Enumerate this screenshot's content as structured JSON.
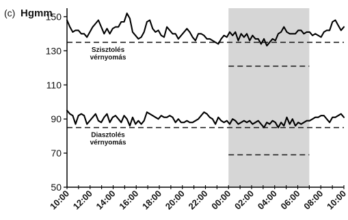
{
  "chart_data": {
    "type": "line",
    "panel_label": "(c)",
    "ylabel": "Hgmm",
    "ylim": [
      50,
      155
    ],
    "yticks": [
      "50",
      "70",
      "90",
      "110",
      "130",
      "150"
    ],
    "xticks": [
      "10:00",
      "12:00",
      "14:00",
      "16:00",
      "18:00",
      "20:00",
      "22:00",
      "00:00",
      "02:00",
      "04:00",
      "06:00",
      "08:00",
      "10:00"
    ],
    "x_range_hours": [
      0,
      24
    ],
    "shaded_region": {
      "start_hour": 14,
      "end_hour": 21,
      "color": "#d6d6d6"
    },
    "series": [
      {
        "values": [
          148,
          144,
          141,
          142,
          142,
          140,
          140,
          138,
          141,
          144,
          146,
          148,
          144,
          140,
          143,
          140,
          143,
          144,
          144,
          147,
          147,
          152,
          149,
          141,
          139,
          137,
          138,
          141,
          147,
          148,
          143,
          141,
          142,
          139,
          138,
          144,
          142,
          140,
          140,
          137,
          139,
          141,
          143,
          141,
          138,
          136,
          140,
          140,
          139,
          137,
          137,
          136,
          135,
          134,
          137,
          139,
          138,
          141,
          139,
          141,
          136,
          140,
          138,
          140,
          136,
          139,
          137,
          137,
          134,
          137,
          133,
          135,
          137,
          136,
          140,
          141,
          144,
          141,
          140,
          140,
          140,
          142,
          142,
          140,
          141,
          141,
          139,
          140,
          139,
          138,
          141,
          142,
          142,
          147,
          148,
          145,
          142,
          144
        ]
      },
      {
        "values": [
          95,
          93,
          92,
          87,
          92,
          93,
          92,
          87,
          89,
          91,
          93,
          89,
          88,
          91,
          93,
          88,
          91,
          92,
          90,
          88,
          92,
          90,
          86,
          91,
          87,
          89,
          87,
          89,
          94,
          93,
          92,
          91,
          90,
          92,
          91,
          91,
          92,
          91,
          88,
          90,
          88,
          88,
          89,
          88,
          88,
          89,
          90,
          92,
          94,
          93,
          91,
          90,
          87,
          91,
          89,
          88,
          89,
          87,
          90,
          89,
          87,
          88,
          89,
          88,
          89,
          87,
          88,
          89,
          87,
          85,
          88,
          87,
          89,
          88,
          85,
          88,
          86,
          91,
          87,
          90,
          86,
          88,
          87,
          88,
          89,
          89,
          90,
          91,
          91,
          92,
          92,
          90,
          88,
          91,
          91,
          92,
          93,
          91
        ]
      }
    ],
    "thresholds": [
      {
        "value": 135,
        "start_hour": 0,
        "end_hour": 24,
        "label": [
          "Szisztolés",
          "vérnyomás"
        ]
      },
      {
        "value": 121,
        "start_hour": 14,
        "end_hour": 21
      },
      {
        "value": 85,
        "start_hour": 0,
        "end_hour": 24,
        "label": [
          "Diasztolés",
          "vérnyomás"
        ]
      },
      {
        "value": 69,
        "start_hour": 14,
        "end_hour": 21
      }
    ],
    "line_color": "#000000",
    "threshold_color": "#222222"
  }
}
